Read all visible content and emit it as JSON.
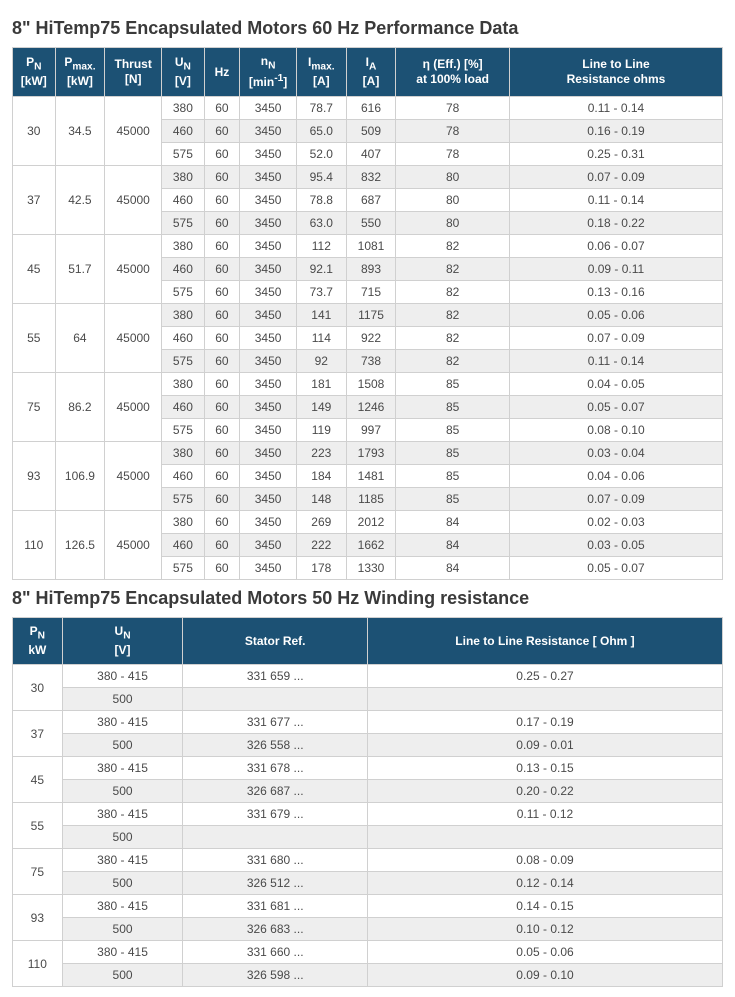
{
  "table1": {
    "title": "8\" HiTemp75 Encapsulated Motors 60 Hz Performance Data",
    "headers": {
      "pn": "P<sub>N</sub><br>[kW]",
      "pmax": "P<sub>max.</sub><br>[kW]",
      "thrust": "Thrust<br>[N]",
      "un": "U<sub>N</sub><br>[V]",
      "hz": "Hz",
      "nn": "n<sub>N</sub><br>[min<sup>-1</sup>]",
      "imax": "I<sub>max.</sub><br>[A]",
      "ia": "I<sub>A</sub><br>[A]",
      "eff": "η (Eff.) [%]<br>at 100% load",
      "res": "Line to Line<br>Resistance ohms"
    },
    "col_widths_pct": [
      6,
      7,
      8,
      6,
      5,
      8,
      7,
      7,
      16,
      30
    ],
    "groups": [
      {
        "pn": "30",
        "pmax": "34.5",
        "thrust": "45000",
        "rows": [
          {
            "un": "380",
            "hz": "60",
            "nn": "3450",
            "imax": "78.7",
            "ia": "616",
            "eff": "78",
            "res": "0.11 - 0.14"
          },
          {
            "un": "460",
            "hz": "60",
            "nn": "3450",
            "imax": "65.0",
            "ia": "509",
            "eff": "78",
            "res": "0.16 - 0.19"
          },
          {
            "un": "575",
            "hz": "60",
            "nn": "3450",
            "imax": "52.0",
            "ia": "407",
            "eff": "78",
            "res": "0.25 - 0.31"
          }
        ]
      },
      {
        "pn": "37",
        "pmax": "42.5",
        "thrust": "45000",
        "rows": [
          {
            "un": "380",
            "hz": "60",
            "nn": "3450",
            "imax": "95.4",
            "ia": "832",
            "eff": "80",
            "res": "0.07 - 0.09"
          },
          {
            "un": "460",
            "hz": "60",
            "nn": "3450",
            "imax": "78.8",
            "ia": "687",
            "eff": "80",
            "res": "0.11 - 0.14"
          },
          {
            "un": "575",
            "hz": "60",
            "nn": "3450",
            "imax": "63.0",
            "ia": "550",
            "eff": "80",
            "res": "0.18 - 0.22"
          }
        ]
      },
      {
        "pn": "45",
        "pmax": "51.7",
        "thrust": "45000",
        "rows": [
          {
            "un": "380",
            "hz": "60",
            "nn": "3450",
            "imax": "112",
            "ia": "1081",
            "eff": "82",
            "res": "0.06 - 0.07"
          },
          {
            "un": "460",
            "hz": "60",
            "nn": "3450",
            "imax": "92.1",
            "ia": "893",
            "eff": "82",
            "res": "0.09 - 0.11"
          },
          {
            "un": "575",
            "hz": "60",
            "nn": "3450",
            "imax": "73.7",
            "ia": "715",
            "eff": "82",
            "res": "0.13 - 0.16"
          }
        ]
      },
      {
        "pn": "55",
        "pmax": "64",
        "thrust": "45000",
        "rows": [
          {
            "un": "380",
            "hz": "60",
            "nn": "3450",
            "imax": "141",
            "ia": "1175",
            "eff": "82",
            "res": "0.05 - 0.06"
          },
          {
            "un": "460",
            "hz": "60",
            "nn": "3450",
            "imax": "114",
            "ia": "922",
            "eff": "82",
            "res": "0.07 - 0.09"
          },
          {
            "un": "575",
            "hz": "60",
            "nn": "3450",
            "imax": "92",
            "ia": "738",
            "eff": "82",
            "res": "0.11 - 0.14"
          }
        ]
      },
      {
        "pn": "75",
        "pmax": "86.2",
        "thrust": "45000",
        "rows": [
          {
            "un": "380",
            "hz": "60",
            "nn": "3450",
            "imax": "181",
            "ia": "1508",
            "eff": "85",
            "res": "0.04 - 0.05"
          },
          {
            "un": "460",
            "hz": "60",
            "nn": "3450",
            "imax": "149",
            "ia": "1246",
            "eff": "85",
            "res": "0.05 - 0.07"
          },
          {
            "un": "575",
            "hz": "60",
            "nn": "3450",
            "imax": "119",
            "ia": "997",
            "eff": "85",
            "res": "0.08 - 0.10"
          }
        ]
      },
      {
        "pn": "93",
        "pmax": "106.9",
        "thrust": "45000",
        "rows": [
          {
            "un": "380",
            "hz": "60",
            "nn": "3450",
            "imax": "223",
            "ia": "1793",
            "eff": "85",
            "res": "0.03 - 0.04"
          },
          {
            "un": "460",
            "hz": "60",
            "nn": "3450",
            "imax": "184",
            "ia": "1481",
            "eff": "85",
            "res": "0.04 - 0.06"
          },
          {
            "un": "575",
            "hz": "60",
            "nn": "3450",
            "imax": "148",
            "ia": "1185",
            "eff": "85",
            "res": "0.07 - 0.09"
          }
        ]
      },
      {
        "pn": "110",
        "pmax": "126.5",
        "thrust": "45000",
        "rows": [
          {
            "un": "380",
            "hz": "60",
            "nn": "3450",
            "imax": "269",
            "ia": "2012",
            "eff": "84",
            "res": "0.02 - 0.03"
          },
          {
            "un": "460",
            "hz": "60",
            "nn": "3450",
            "imax": "222",
            "ia": "1662",
            "eff": "84",
            "res": "0.03 - 0.05"
          },
          {
            "un": "575",
            "hz": "60",
            "nn": "3450",
            "imax": "178",
            "ia": "1330",
            "eff": "84",
            "res": "0.05 - 0.07"
          }
        ]
      }
    ]
  },
  "table2": {
    "title": "8\" HiTemp75 Encapsulated Motors 50 Hz Winding resistance",
    "headers": {
      "pn": "P<sub>N</sub><br>kW",
      "un": "U<sub>N</sub><br>[V]",
      "stator": "Stator Ref.",
      "res": "Line to Line Resistance [ Ohm ]"
    },
    "col_widths_pct": [
      7,
      17,
      26,
      50
    ],
    "groups": [
      {
        "pn": "30",
        "rows": [
          {
            "un": "380 - 415",
            "stator": "331 659 ...",
            "res": "0.25 - 0.27"
          },
          {
            "un": "500",
            "stator": "",
            "res": ""
          }
        ]
      },
      {
        "pn": "37",
        "rows": [
          {
            "un": "380 - 415",
            "stator": "331 677 ...",
            "res": "0.17 - 0.19"
          },
          {
            "un": "500",
            "stator": "326 558 ...",
            "res": "0.09 - 0.01"
          }
        ]
      },
      {
        "pn": "45",
        "rows": [
          {
            "un": "380 - 415",
            "stator": "331 678 ...",
            "res": "0.13 - 0.15"
          },
          {
            "un": "500",
            "stator": "326 687 ...",
            "res": "0.20 - 0.22"
          }
        ]
      },
      {
        "pn": "55",
        "rows": [
          {
            "un": "380 - 415",
            "stator": "331 679 ...",
            "res": "0.11 - 0.12"
          },
          {
            "un": "500",
            "stator": "",
            "res": ""
          }
        ]
      },
      {
        "pn": "75",
        "rows": [
          {
            "un": "380 - 415",
            "stator": "331 680 ...",
            "res": "0.08 - 0.09"
          },
          {
            "un": "500",
            "stator": "326 512 ...",
            "res": "0.12 - 0.14"
          }
        ]
      },
      {
        "pn": "93",
        "rows": [
          {
            "un": "380 - 415",
            "stator": "331 681 ...",
            "res": "0.14 - 0.15"
          },
          {
            "un": "500",
            "stator": "326 683 ...",
            "res": "0.10 - 0.12"
          }
        ]
      },
      {
        "pn": "110",
        "rows": [
          {
            "un": "380 - 415",
            "stator": "331 660 ...",
            "res": "0.05 - 0.06"
          },
          {
            "un": "500",
            "stator": "326 598 ...",
            "res": "0.09 - 0.10"
          }
        ]
      }
    ]
  },
  "style": {
    "header_bg": "#1c5174",
    "header_fg": "#ffffff",
    "alt_bg": "#eeeeee",
    "border": "#d0d0d0"
  }
}
